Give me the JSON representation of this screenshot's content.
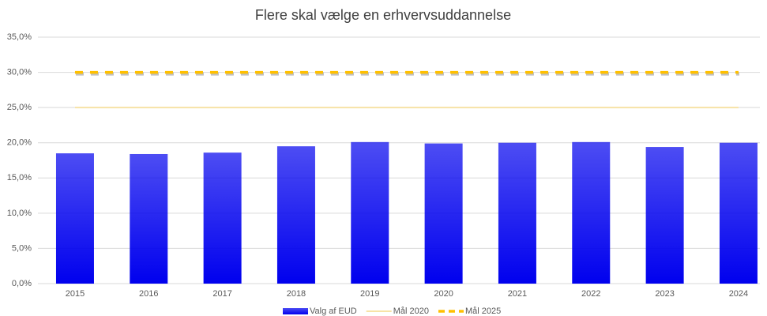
{
  "chart_data": {
    "type": "bar",
    "title": "Flere skal vælge en erhvervsuddannelse",
    "categories": [
      "2015",
      "2016",
      "2017",
      "2018",
      "2019",
      "2020",
      "2021",
      "2022",
      "2023",
      "2024"
    ],
    "series": [
      {
        "name": "Valg af EUD",
        "type": "bar",
        "color": "#0000ee",
        "values": [
          18.5,
          18.4,
          18.6,
          19.5,
          20.1,
          19.9,
          20.0,
          20.1,
          19.4,
          20.0
        ]
      },
      {
        "name": "Mål 2020",
        "type": "line",
        "color": "#f7e3a6",
        "values": [
          25,
          25,
          25,
          25,
          25,
          25,
          25,
          25,
          25,
          25
        ]
      },
      {
        "name": "Mål 2025",
        "type": "line",
        "dashed": true,
        "color": "#ffc000",
        "values": [
          30,
          30,
          30,
          30,
          30,
          30,
          30,
          30,
          30,
          30
        ]
      }
    ],
    "ylim": [
      0,
      35
    ],
    "yticks": [
      {
        "value": 0,
        "label": "0,0%"
      },
      {
        "value": 5,
        "label": "5,0%"
      },
      {
        "value": 10,
        "label": "10,0%"
      },
      {
        "value": 15,
        "label": "15,0%"
      },
      {
        "value": 20,
        "label": "20,0%"
      },
      {
        "value": 25,
        "label": "25,0%"
      },
      {
        "value": 30,
        "label": "30,0%"
      },
      {
        "value": 35,
        "label": "35,0%"
      }
    ],
    "grid": true,
    "legend": "bottom"
  }
}
